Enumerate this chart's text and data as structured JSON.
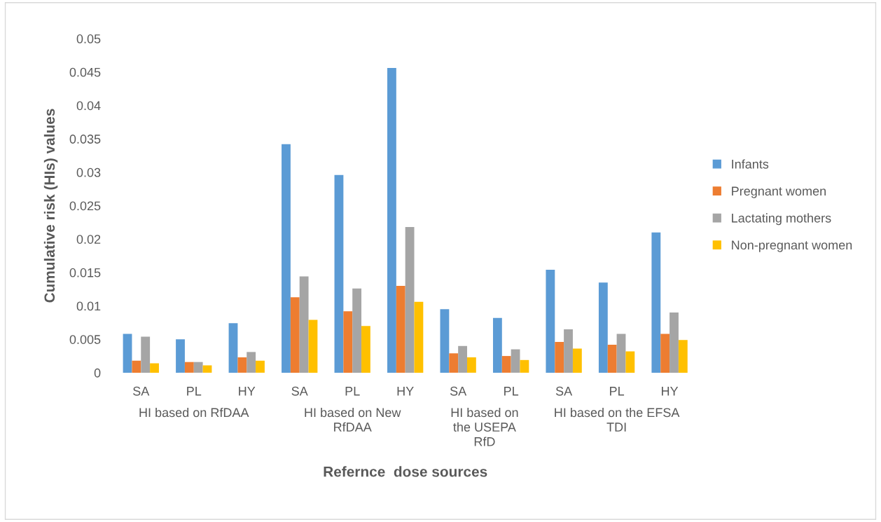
{
  "chart_data": {
    "type": "bar",
    "xlabel": "Refernce  dose sources",
    "ylabel": "Cumulative risk (HIs) values",
    "categories": [
      "SA",
      "PL",
      "HY",
      "SA",
      "PL",
      "HY",
      "SA",
      "PL",
      "SA",
      "PL",
      "HY"
    ],
    "annotations": [
      "HI based on RfDAA",
      "HI based on New RfDAA",
      "HI based on the USEPA RfD",
      "HI based on the EFSA TDI"
    ],
    "series": [
      {
        "name": "Infants",
        "color": "#5b9bd5",
        "values": [
          0.0058,
          0.005,
          0.0074,
          0.0342,
          0.0296,
          0.0456,
          0.0095,
          0.0082,
          0.0154,
          0.0135,
          0.021
        ]
      },
      {
        "name": "Pregnant women",
        "color": "#ed7d31",
        "values": [
          0.0018,
          0.0016,
          0.0023,
          0.0113,
          0.0092,
          0.013,
          0.0029,
          0.0025,
          0.0046,
          0.0042,
          0.0058
        ]
      },
      {
        "name": "Lactating mothers",
        "color": "#a5a5a5",
        "values": [
          0.0054,
          0.0016,
          0.0031,
          0.0144,
          0.0126,
          0.0218,
          0.004,
          0.0035,
          0.0065,
          0.0058,
          0.009
        ]
      },
      {
        "name": "Non-pregnant women",
        "color": "#ffc000",
        "values": [
          0.0014,
          0.0011,
          0.0018,
          0.0079,
          0.007,
          0.0106,
          0.0023,
          0.0019,
          0.0036,
          0.0032,
          0.0049
        ]
      }
    ],
    "ylim": [
      0,
      0.05
    ],
    "yticks": [
      0,
      0.005,
      0.01,
      0.015,
      0.02,
      0.025,
      0.03,
      0.035,
      0.04,
      0.045,
      0.05
    ],
    "grid": false,
    "legend": "right"
  }
}
